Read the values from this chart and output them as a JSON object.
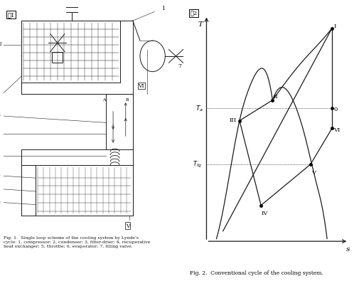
{
  "fig_width": 5.05,
  "fig_height": 4.1,
  "bg_color": "#ffffff",
  "fig1_label": "図1",
  "fig2_label": "図2",
  "fig2_caption": "Fig. 2.  Conventional cycle of the cooling system.",
  "fig1_caption": "Fig. 1.  Single loop scheme of the cooling system by Lynde's\ncycle: 1, compressor; 2, condenser; 3, filter-drier; 4, recuperative\nheat exchanger; 5, throttle; 6, evaporator; 7, filling valve.",
  "line_color": "#1a1a1a",
  "text_color": "#1a1a1a",
  "lw": 0.7
}
